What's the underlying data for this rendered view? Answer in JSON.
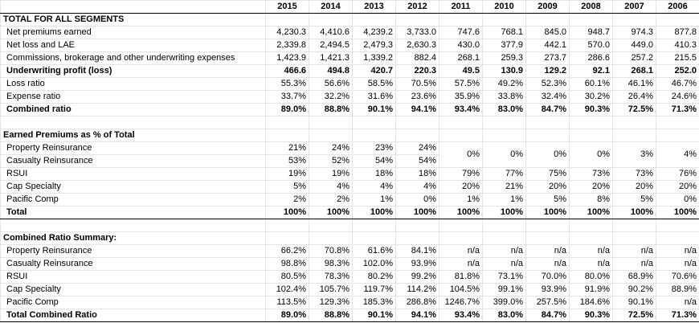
{
  "header": {
    "years": [
      "2015",
      "2014",
      "2013",
      "2012",
      "2011",
      "2010",
      "2009",
      "2008",
      "2007",
      "2006"
    ]
  },
  "sections": [
    {
      "title": "TOTAL FOR ALL SEGMENTS",
      "rows": [
        {
          "label": "Net premiums earned",
          "values": [
            "4,230.3",
            "4,410.6",
            "4,239.2",
            "3,733.0",
            "747.6",
            "768.1",
            "845.0",
            "948.7",
            "974.3",
            "877.8"
          ]
        },
        {
          "label": "Net loss and LAE",
          "values": [
            "2,339.8",
            "2,494.5",
            "2,479.3",
            "2,630.3",
            "430.0",
            "377.9",
            "442.1",
            "570.0",
            "449.0",
            "410.3"
          ]
        },
        {
          "label": "Commissions, brokerage and other underwriting expenses",
          "values": [
            "1,423.9",
            "1,421.3",
            "1,339.2",
            "882.4",
            "268.1",
            "259.3",
            "273.7",
            "286.6",
            "257.2",
            "215.5"
          ]
        },
        {
          "label": "Underwriting profit (loss)",
          "bold": true,
          "values": [
            "466.6",
            "494.8",
            "420.7",
            "220.3",
            "49.5",
            "130.9",
            "129.2",
            "92.1",
            "268.1",
            "252.0"
          ]
        },
        {
          "label": "Loss ratio",
          "values": [
            "55.3%",
            "56.6%",
            "58.5%",
            "70.5%",
            "57.5%",
            "49.2%",
            "52.3%",
            "60.1%",
            "46.1%",
            "46.7%"
          ]
        },
        {
          "label": "Expense ratio",
          "values": [
            "33.7%",
            "32.2%",
            "31.6%",
            "23.6%",
            "35.9%",
            "33.8%",
            "32.4%",
            "30.2%",
            "26.4%",
            "24.6%"
          ]
        },
        {
          "label": "Combined ratio",
          "bold": true,
          "values": [
            "89.0%",
            "88.8%",
            "90.1%",
            "94.1%",
            "93.4%",
            "83.0%",
            "84.7%",
            "90.3%",
            "72.5%",
            "71.3%"
          ]
        }
      ]
    },
    {
      "title": "Earned Premiums as % of Total",
      "rows": [
        {
          "label": "Property Reinsurance",
          "values": [
            "21%",
            "24%",
            "23%",
            "24%",
            "0%",
            "0%",
            "0%",
            "0%",
            "3%",
            "4%"
          ],
          "merged_from": 4
        },
        {
          "label": "Casualty Reinsurance",
          "values": [
            "53%",
            "52%",
            "54%",
            "54%"
          ]
        },
        {
          "label": "RSUI",
          "values": [
            "19%",
            "19%",
            "18%",
            "18%",
            "79%",
            "77%",
            "75%",
            "73%",
            "73%",
            "76%"
          ]
        },
        {
          "label": "Cap Specialty",
          "values": [
            "5%",
            "4%",
            "4%",
            "4%",
            "20%",
            "21%",
            "20%",
            "20%",
            "20%",
            "20%"
          ]
        },
        {
          "label": "Pacific Comp",
          "values": [
            "2%",
            "2%",
            "1%",
            "0%",
            "1%",
            "1%",
            "5%",
            "8%",
            "5%",
            "0%"
          ]
        },
        {
          "label": "Total",
          "bold": true,
          "values": [
            "100%",
            "100%",
            "100%",
            "100%",
            "100%",
            "100%",
            "100%",
            "100%",
            "100%",
            "100%"
          ]
        }
      ]
    },
    {
      "title": "Combined Ratio Summary:",
      "rows": [
        {
          "label": "Property Reinsurance",
          "values": [
            "66.2%",
            "70.8%",
            "61.6%",
            "84.1%",
            "n/a",
            "n/a",
            "n/a",
            "n/a",
            "n/a",
            "n/a"
          ]
        },
        {
          "label": "Casualty Reinsurance",
          "values": [
            "98.8%",
            "98.3%",
            "102.0%",
            "93.9%",
            "n/a",
            "n/a",
            "n/a",
            "n/a",
            "n/a",
            "n/a"
          ]
        },
        {
          "label": "RSUI",
          "values": [
            "80.5%",
            "78.3%",
            "80.2%",
            "99.2%",
            "81.8%",
            "73.1%",
            "70.0%",
            "80.0%",
            "68.9%",
            "70.6%"
          ]
        },
        {
          "label": "Cap Specialty",
          "values": [
            "102.4%",
            "105.7%",
            "119.7%",
            "114.2%",
            "104.5%",
            "99.1%",
            "93.9%",
            "91.9%",
            "90.2%",
            "88.9%"
          ]
        },
        {
          "label": "Pacific Comp",
          "values": [
            "113.5%",
            "129.3%",
            "185.3%",
            "286.8%",
            "1246.7%",
            "399.0%",
            "257.5%",
            "184.6%",
            "90.1%",
            "n/a"
          ]
        },
        {
          "label": "Total Combined Ratio",
          "bold": true,
          "values": [
            "89.0%",
            "88.8%",
            "90.1%",
            "94.1%",
            "93.4%",
            "83.0%",
            "84.7%",
            "90.3%",
            "72.5%",
            "71.3%"
          ]
        }
      ]
    }
  ]
}
